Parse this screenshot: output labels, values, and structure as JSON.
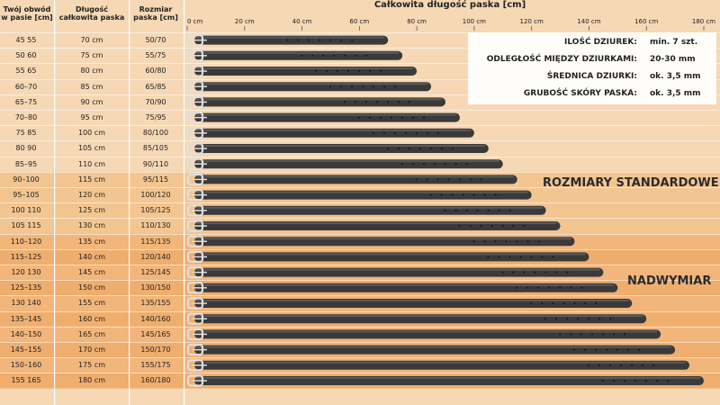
{
  "header": {
    "waist_title": "Twój obwód w pasie [cm]",
    "length_title": "Długość całkowita paska",
    "size_title": "Rozmiar paska [cm]",
    "total_title": "Całkowita długość paska [cm]"
  },
  "info": {
    "items": [
      {
        "label": "ILOŚĆ DZIUREK:",
        "value": "min. 7 szt."
      },
      {
        "label": "ODLEGŁOŚĆ MIĘDZY DZIURKAMI:",
        "value": "20-30 mm"
      },
      {
        "label": "ŚREDNICA DZIURKI:",
        "value": "ok. 3,5 mm"
      },
      {
        "label": "GRUBOŚĆ SKÓRY PASKA:",
        "value": "ok. 3,5 mm"
      }
    ]
  },
  "zones": {
    "standard": "ROZMIARY STANDARDOWE",
    "oversize": "NADWYMIAR"
  },
  "colors": {
    "belt": "#3a3a3a",
    "buckle": "#e0e0e0",
    "band_light": "#f6d8b5",
    "band_mid": "#f3c590",
    "band_dark": "#efae6d"
  },
  "chart_data": {
    "type": "bar",
    "title": "Całkowita długość paska [cm]",
    "xlabel": "Całkowita długość paska [cm]",
    "x_ticks": [
      "0 cm",
      "20 cm",
      "40 cm",
      "60 cm",
      "80 cm",
      "100 cm",
      "120 cm",
      "140 cm",
      "160 cm",
      "180 cm"
    ],
    "xlim": [
      0,
      180
    ],
    "rows": [
      {
        "waist": "45  55",
        "length": "70 cm",
        "size": "50/70",
        "value": 70
      },
      {
        "waist": "50  60",
        "length": "75 cm",
        "size": "55/75",
        "value": 75
      },
      {
        "waist": "55  65",
        "length": "80 cm",
        "size": "60/80",
        "value": 80
      },
      {
        "waist": "60–70",
        "length": "85 cm",
        "size": "65/85",
        "value": 85
      },
      {
        "waist": "65–75",
        "length": "90 cm",
        "size": "70/90",
        "value": 90
      },
      {
        "waist": "70–80",
        "length": "95 cm",
        "size": "75/95",
        "value": 95
      },
      {
        "waist": "75  85",
        "length": "100 cm",
        "size": "80/100",
        "value": 100
      },
      {
        "waist": "80  90",
        "length": "105 cm",
        "size": "85/105",
        "value": 105
      },
      {
        "waist": "85–95",
        "length": "110 cm",
        "size": "90/110",
        "value": 110
      },
      {
        "waist": "90–100",
        "length": "115 cm",
        "size": "95/115",
        "value": 115
      },
      {
        "waist": "95–105",
        "length": "120 cm",
        "size": "100/120",
        "value": 120
      },
      {
        "waist": "100  110",
        "length": "125 cm",
        "size": "105/125",
        "value": 125
      },
      {
        "waist": "105  115",
        "length": "130 cm",
        "size": "110/130",
        "value": 130
      },
      {
        "waist": "110–120",
        "length": "135 cm",
        "size": "115/135",
        "value": 135
      },
      {
        "waist": "115–125",
        "length": "140 cm",
        "size": "120/140",
        "value": 140
      },
      {
        "waist": "120  130",
        "length": "145 cm",
        "size": "125/145",
        "value": 145
      },
      {
        "waist": "125–135",
        "length": "150 cm",
        "size": "130/150",
        "value": 150
      },
      {
        "waist": "130  140",
        "length": "155 cm",
        "size": "135/155",
        "value": 155
      },
      {
        "waist": "135–145",
        "length": "160 cm",
        "size": "140/160",
        "value": 160
      },
      {
        "waist": "140–150",
        "length": "165 cm",
        "size": "145/165",
        "value": 165
      },
      {
        "waist": "145–155",
        "length": "170 cm",
        "size": "150/170",
        "value": 170
      },
      {
        "waist": "150–160",
        "length": "175 cm",
        "size": "155/175",
        "value": 175
      },
      {
        "waist": "155  165",
        "length": "180 cm",
        "size": "160/180",
        "value": 180
      }
    ]
  }
}
